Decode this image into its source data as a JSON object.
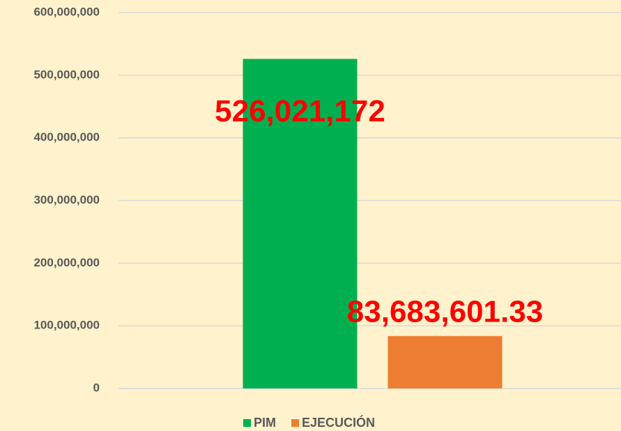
{
  "chart_data": {
    "type": "bar",
    "categories": [
      null
    ],
    "series": [
      {
        "name": "PIM",
        "color": "#00B050",
        "values": [
          526021172
        ],
        "value_labels": [
          "526,021,172"
        ]
      },
      {
        "name": "EJECUCIÓN",
        "color": "#ED7D31",
        "values": [
          83683601.33
        ],
        "value_labels": [
          "83,683,601.33"
        ]
      }
    ],
    "ylim": [
      0,
      600000000
    ],
    "yticks": [
      {
        "value": 0,
        "label": "0"
      },
      {
        "value": 100000000,
        "label": "100,000,000"
      },
      {
        "value": 200000000,
        "label": "200,000,000"
      },
      {
        "value": 300000000,
        "label": "300,000,000"
      },
      {
        "value": 400000000,
        "label": "400,000,000"
      },
      {
        "value": 500000000,
        "label": "500,000,000"
      },
      {
        "value": 600000000,
        "label": "600,000,000"
      }
    ],
    "grid": true,
    "legend": "bottom",
    "value_label_color": "#FF0000"
  }
}
